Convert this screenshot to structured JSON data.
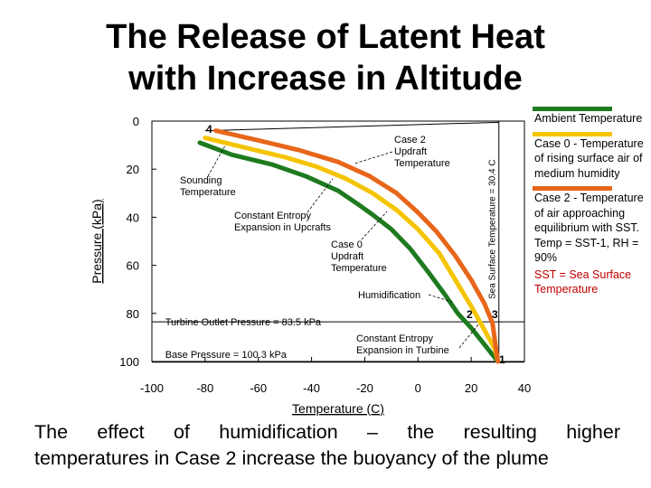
{
  "title": {
    "line1": "The Release of Latent Heat",
    "line2": "with Increase in Altitude"
  },
  "legend": {
    "ambient": {
      "label": "Ambient Temperature",
      "color": "#1e7a1e"
    },
    "case0": {
      "label": "Case 0 - Temperature of rising surface air of medium humidity",
      "color": "#f5c400"
    },
    "case2": {
      "label": "Case 2 - Temperature of air approaching equilibrium with SST. Temp = SST-1, RH = 90%",
      "color": "#e8661a"
    },
    "note": "SST = Sea Surface Temperature"
  },
  "caption": {
    "line1": "The effect of humidification – the resulting higher",
    "line2": "temperatures in Case 2 increase the buoyancy of the plume"
  },
  "chart_data": {
    "type": "line",
    "xlabel": "Temperature (C)",
    "ylabel": "Pressure (kPa)",
    "xlim": [
      -100,
      40
    ],
    "ylim": [
      0,
      100
    ],
    "y_inverted": true,
    "x_ticks": [
      "-100",
      "-80",
      "-60",
      "-40",
      "-20",
      "0",
      "20",
      "40"
    ],
    "y_ticks": [
      "0",
      "20",
      "40",
      "60",
      "80",
      "100"
    ],
    "series": [
      {
        "name": "Ambient Temperature",
        "color": "#1e7a1e",
        "points": [
          [
            -82,
            9
          ],
          [
            -70,
            14
          ],
          [
            -55,
            18
          ],
          [
            -42,
            23
          ],
          [
            -30,
            29
          ],
          [
            -22,
            35
          ],
          [
            -17,
            39
          ],
          [
            -10,
            45
          ],
          [
            -3,
            53
          ],
          [
            4,
            63
          ],
          [
            10,
            72
          ],
          [
            15,
            80
          ],
          [
            20,
            86
          ],
          [
            25,
            93
          ],
          [
            30,
            100
          ]
        ]
      },
      {
        "name": "Case 0",
        "color": "#f5c400",
        "points": [
          [
            -80,
            7
          ],
          [
            -65,
            11
          ],
          [
            -50,
            15
          ],
          [
            -38,
            19
          ],
          [
            -27,
            24
          ],
          [
            -17,
            30
          ],
          [
            -8,
            37
          ],
          [
            0,
            45
          ],
          [
            8,
            55
          ],
          [
            14,
            66
          ],
          [
            20,
            77
          ],
          [
            25,
            87
          ],
          [
            29,
            95
          ],
          [
            30,
            100
          ]
        ]
      },
      {
        "name": "Case 2",
        "color": "#e8661a",
        "points": [
          [
            -76,
            4
          ],
          [
            -60,
            8
          ],
          [
            -45,
            12
          ],
          [
            -30,
            17
          ],
          [
            -18,
            23
          ],
          [
            -8,
            30
          ],
          [
            0,
            38
          ],
          [
            7,
            46
          ],
          [
            14,
            56
          ],
          [
            20,
            66
          ],
          [
            25,
            76
          ],
          [
            28,
            84
          ],
          [
            29,
            92
          ],
          [
            30,
            100
          ]
        ]
      }
    ],
    "reference_lines": [
      {
        "label": "Turbine Outlet Pressure = 83.5 kPa",
        "y": 83.5
      },
      {
        "label": "Base Pressure = 100.3 kPa",
        "y": 100.3
      },
      {
        "label": "Sea Surface Temperature = 30.4 C",
        "x": 30.4
      }
    ],
    "annotations": [
      {
        "text": "Case 2 Updraft Temperature"
      },
      {
        "text": "Sounding Temperature"
      },
      {
        "text": "Constant Entropy Expansion in Upcrafts"
      },
      {
        "text": "Case 0 Updraft Temperature"
      },
      {
        "text": "Humidification"
      },
      {
        "text": "Constant Entropy Expansion in Turbine"
      }
    ],
    "point_labels": [
      "1",
      "2",
      "3",
      "4"
    ]
  }
}
